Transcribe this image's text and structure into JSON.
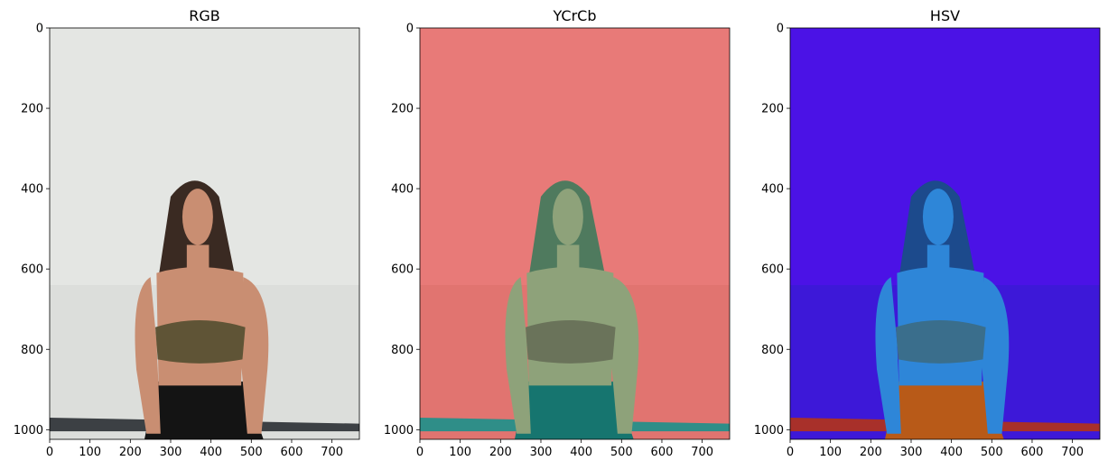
{
  "chart_data": [
    {
      "type": "image",
      "title": "RGB",
      "xlim": [
        0,
        768
      ],
      "ylim": [
        1024,
        0
      ],
      "xticks": [
        0,
        100,
        200,
        300,
        400,
        500,
        600,
        700
      ],
      "yticks": [
        0,
        200,
        400,
        600,
        800,
        1000
      ],
      "palette": {
        "bg": "#e4e6e3",
        "bg_lower": "#dcdedb",
        "floor": "#3c4044",
        "skin": "#c98e72",
        "hair": "#3a2a22",
        "top": "#5f5436",
        "pants": "#141414"
      }
    },
    {
      "type": "image",
      "title": "YCrCb",
      "xlim": [
        0,
        768
      ],
      "ylim": [
        1024,
        0
      ],
      "xticks": [
        0,
        100,
        200,
        300,
        400,
        500,
        600,
        700
      ],
      "yticks": [
        0,
        200,
        400,
        600,
        800,
        1000
      ],
      "palette": {
        "bg": "#e87a78",
        "bg_lower": "#e17470",
        "floor": "#2f8e88",
        "skin": "#8ea27a",
        "hair": "#4f7a5e",
        "top": "#6a735a",
        "pants": "#16756f"
      }
    },
    {
      "type": "image",
      "title": "HSV",
      "xlim": [
        0,
        768
      ],
      "ylim": [
        1024,
        0
      ],
      "xticks": [
        0,
        100,
        200,
        300,
        400,
        500,
        600,
        700
      ],
      "yticks": [
        0,
        200,
        400,
        600,
        800,
        1000
      ],
      "palette": {
        "bg": "#4b12e6",
        "bg_lower": "#3d18d8",
        "floor": "#a8302a",
        "skin": "#2e86d8",
        "hair": "#1c4a8c",
        "top": "#3a6e8c",
        "pants": "#b85a18"
      }
    }
  ]
}
